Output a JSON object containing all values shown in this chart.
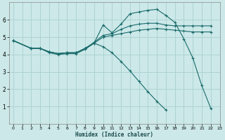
{
  "xlabel": "Humidex (Indice chaleur)",
  "bg_color": "#cce8e8",
  "grid_color": "#aad0d0",
  "line_color": "#1a6b6b",
  "xlim": [
    -0.5,
    23
  ],
  "ylim": [
    0,
    7
  ],
  "yticks": [
    1,
    2,
    3,
    4,
    5,
    6
  ],
  "xticks": [
    0,
    1,
    2,
    3,
    4,
    5,
    6,
    7,
    8,
    9,
    10,
    11,
    12,
    13,
    14,
    15,
    16,
    17,
    18,
    19,
    20,
    21,
    22,
    23
  ],
  "lines": [
    {
      "x": [
        0,
        2,
        3,
        4,
        5,
        6,
        7,
        8,
        9,
        10,
        11,
        12,
        13,
        14,
        15,
        16,
        17,
        18,
        19,
        20,
        21,
        22
      ],
      "y": [
        4.8,
        4.35,
        4.35,
        4.1,
        4.0,
        4.05,
        4.05,
        4.3,
        4.65,
        5.7,
        5.25,
        5.75,
        6.35,
        6.45,
        6.55,
        6.6,
        6.25,
        5.85,
        4.9,
        3.8,
        2.2,
        0.9
      ]
    },
    {
      "x": [
        0,
        2,
        3,
        4,
        5,
        6,
        7,
        8,
        9,
        10,
        11,
        12,
        13,
        14,
        15,
        16,
        17,
        18,
        19,
        20,
        21,
        22
      ],
      "y": [
        4.8,
        4.35,
        4.35,
        4.15,
        4.05,
        4.1,
        4.1,
        4.35,
        4.7,
        5.1,
        5.2,
        5.45,
        5.65,
        5.75,
        5.8,
        5.8,
        5.7,
        5.65,
        5.65,
        5.65,
        5.65,
        5.65
      ]
    },
    {
      "x": [
        0,
        2,
        3,
        4,
        5,
        6,
        7,
        8,
        9,
        10,
        11,
        12,
        13,
        14,
        15,
        16,
        17,
        18,
        19,
        20,
        21,
        22
      ],
      "y": [
        4.8,
        4.35,
        4.35,
        4.15,
        4.05,
        4.1,
        4.1,
        4.35,
        4.65,
        5.0,
        5.1,
        5.2,
        5.3,
        5.4,
        5.45,
        5.5,
        5.45,
        5.4,
        5.35,
        5.3,
        5.3,
        5.3
      ]
    },
    {
      "x": [
        0,
        2,
        3,
        4,
        5,
        6,
        7,
        8,
        9,
        10,
        11,
        12,
        13,
        14,
        15,
        16,
        17
      ],
      "y": [
        4.8,
        4.35,
        4.35,
        4.15,
        4.05,
        4.1,
        4.1,
        4.35,
        4.65,
        4.45,
        4.1,
        3.6,
        3.05,
        2.45,
        1.85,
        1.3,
        0.8
      ]
    }
  ]
}
